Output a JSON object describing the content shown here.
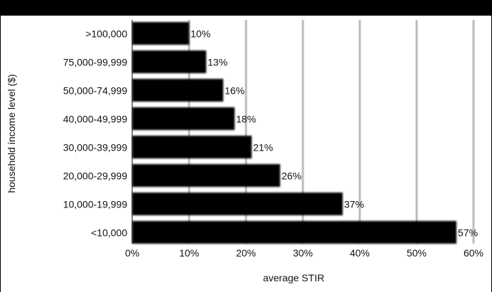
{
  "chart_data": {
    "type": "bar",
    "orientation": "horizontal",
    "categories": [
      ">100,000",
      "75,000-99,999",
      "50,000-74,999",
      "40,000-49,999",
      "30,000-39,999",
      "20,000-29,999",
      "10,000-19,999",
      "<10,000"
    ],
    "values": [
      10,
      13,
      16,
      18,
      21,
      26,
      37,
      57
    ],
    "value_labels": [
      "10%",
      "13%",
      "16%",
      "18%",
      "21%",
      "26%",
      "37%",
      "57%"
    ],
    "xlabel": "average STIR",
    "ylabel": "household income level ($)",
    "xlim": [
      0,
      60
    ],
    "xticks": [
      0,
      10,
      20,
      30,
      40,
      50,
      60
    ],
    "xtick_labels": [
      "0%",
      "10%",
      "20%",
      "30%",
      "40%",
      "50%",
      "60%"
    ],
    "grid": "vertical",
    "legend": "none",
    "bar_color": "#000000",
    "grid_color": "#bbbbbb"
  }
}
